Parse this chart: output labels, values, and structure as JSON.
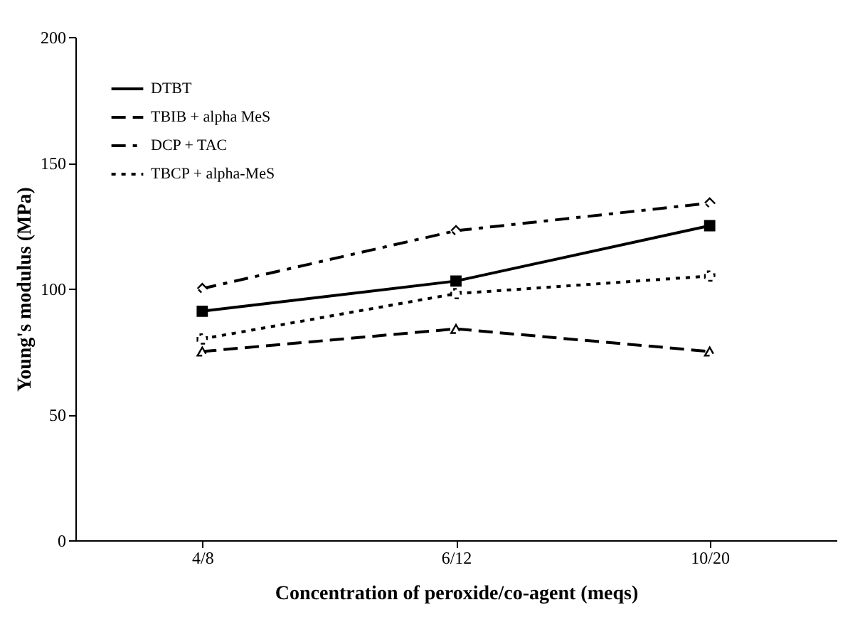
{
  "chart_data": {
    "type": "line",
    "xlabel": "Concentration of peroxide/co-agent (meqs)",
    "ylabel": "Young's modulus (MPa)",
    "categories": [
      "4/8",
      "6/12",
      "10/20"
    ],
    "ylim": [
      0,
      200
    ],
    "yticks": [
      0,
      50,
      100,
      150,
      200
    ],
    "legend": "top left",
    "grid": false,
    "series": [
      {
        "name": "DTBT",
        "color": "#000000",
        "marker": "square",
        "line_style": "solid",
        "values": [
          91,
          103,
          125
        ]
      },
      {
        "name": "TBIB + alpha MeS",
        "color": "#000000",
        "marker": "triangle",
        "line_style": "dashed",
        "values": [
          75,
          84,
          75
        ]
      },
      {
        "name": "DCP + TAC",
        "color": "#000000",
        "marker": "diamond",
        "line_style": "dashdot",
        "values": [
          100,
          123,
          134
        ]
      },
      {
        "name": "TBCP + alpha-MeS",
        "color": "#000000",
        "marker": "cross",
        "line_style": "dotted",
        "values": [
          80,
          98,
          105
        ]
      }
    ]
  }
}
